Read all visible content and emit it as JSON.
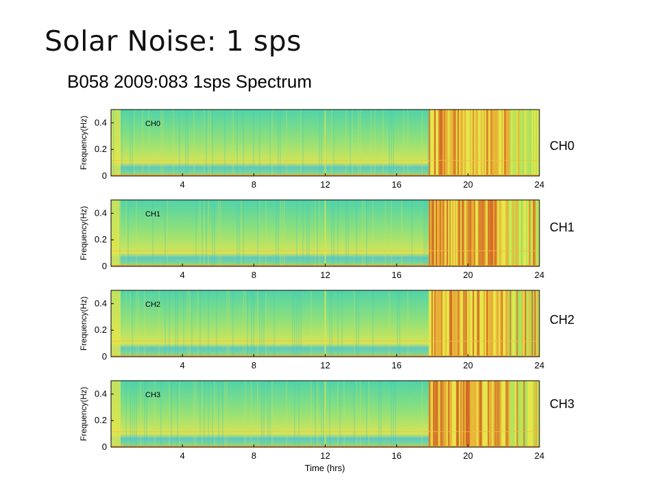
{
  "slide": {
    "title": "Solar Noise: 1 sps",
    "figure_title": "B058 2009:083 1sps Spectrum"
  },
  "side_labels": [
    "CH0",
    "CH1",
    "CH2",
    "CH3"
  ],
  "colors": {
    "background_quiet": "#5fd39b",
    "noise_mid": "#e6e64a",
    "noise_high": "#e9a431",
    "noise_peak": "#d1541e"
  },
  "chart_data": {
    "type": "heatmap",
    "title": "B058 2009:083 1sps Spectrum",
    "xlabel": "Time (hrs)",
    "ylabel": "Frequency(Hz)",
    "xlim": [
      0,
      24
    ],
    "ylim": [
      0,
      0.5
    ],
    "x_ticks": [
      4,
      8,
      12,
      16,
      20,
      24
    ],
    "y_ticks": [
      0,
      0.2,
      0.4
    ],
    "y_tick_labels": [
      "0",
      "0.2",
      "0.4"
    ],
    "colormap": "jet",
    "panels": [
      {
        "label": "CH0",
        "noise_start_hr": 17.8,
        "noise_end_hr": 24,
        "intensity": 0.75
      },
      {
        "label": "CH1",
        "noise_start_hr": 17.8,
        "noise_end_hr": 24,
        "intensity": 1.0
      },
      {
        "label": "CH2",
        "noise_start_hr": 17.8,
        "noise_end_hr": 24,
        "intensity": 0.85
      },
      {
        "label": "CH3",
        "noise_start_hr": 17.8,
        "noise_end_hr": 24,
        "intensity": 1.0
      }
    ]
  }
}
